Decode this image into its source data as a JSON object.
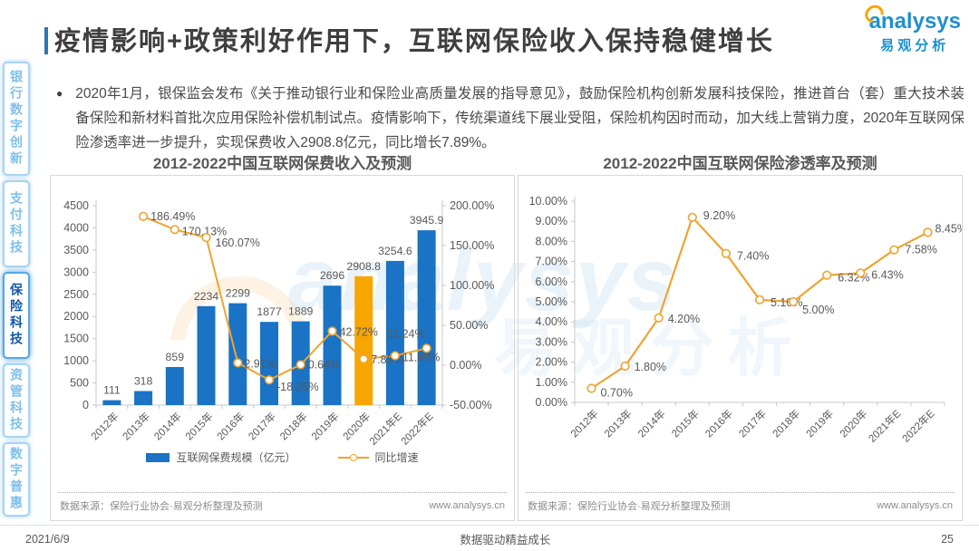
{
  "page": {
    "title": "疫情影响+政策利好作用下，互联网保险收入保持稳健增长",
    "logo": {
      "brand": "analysys",
      "brand_cn": "易观分析"
    },
    "bullet_text": "2020年1月，银保监会发布《关于推动银行业和保险业高质量发展的指导意见》，鼓励保险机构创新发展科技保险，推进首台（套）重大技术装备保险和新材料首批次应用保险补偿机制试点。疫情影响下，传统渠道线下展业受阻，保险机构因时而动，加大线上营销力度，2020年互联网保险渗透率进一步提升，实现保费收入2908.8亿元，同比增长7.89%。",
    "footer": {
      "date": "2021/6/9",
      "slogan": "数据驱动精益成长",
      "page_number": "25"
    }
  },
  "sidebar": {
    "items": [
      {
        "label": "银行数字创新",
        "active": false
      },
      {
        "label": "支付科技",
        "active": false
      },
      {
        "label": "保险科技",
        "active": true
      },
      {
        "label": "资管科技",
        "active": false
      },
      {
        "label": "数字普惠",
        "active": false
      }
    ]
  },
  "watermark": {
    "brand": "analysys",
    "brand_cn": "易观分析"
  },
  "colors": {
    "bar_blue": "#1a73c4",
    "bar_highlight_orange": "#f7a600",
    "line_orange": "#f0a330",
    "brand_blue": "#1f8fd0",
    "brand_orange": "#f7a600",
    "sidebar_active_blue": "#1258a8",
    "axis_gray": "#c9c9c9",
    "label_gray": "#595959"
  },
  "chart_data": [
    {
      "type": "bar",
      "title": "2012-2022中国互联网保费收入及预测",
      "categories": [
        "2012年",
        "2013年",
        "2014年",
        "2015年",
        "2016年",
        "2017年",
        "2018年",
        "2019年",
        "2020年",
        "2021年E",
        "2022年E"
      ],
      "series": [
        {
          "name": "互联网保费规模（亿元）",
          "type": "bar",
          "axis": "left",
          "color": "#1a73c4",
          "highlight_color": "#f7a600",
          "highlight_index": 8,
          "values": [
            111,
            318,
            859,
            2234,
            2299,
            1877,
            1889,
            2696,
            2908.8,
            3254.6,
            3945.9
          ],
          "labels": [
            "111",
            "318",
            "859",
            "2234",
            "2299",
            "1877",
            "1889",
            "2696",
            "2908.8",
            "3254.6",
            "3945.9"
          ]
        },
        {
          "name": "同比增速",
          "type": "line",
          "axis": "right",
          "color": "#f0a330",
          "values": [
            null,
            186.49,
            170.13,
            160.07,
            2.91,
            -18.36,
            0.64,
            42.72,
            7.89,
            11.89,
            21.24
          ],
          "labels": [
            "",
            "186.49%",
            "170.13%",
            "160.07%",
            "2.91%",
            "-18.36%",
            "0.64%",
            "42.72%",
            "7.89%",
            "11.89%",
            "21.24%"
          ]
        }
      ],
      "left_axis": {
        "min": 0,
        "max": 4500,
        "ticks": [
          "0",
          "500",
          "1000",
          "1500",
          "2000",
          "2500",
          "3000",
          "3500",
          "4000",
          "4500"
        ]
      },
      "right_axis": {
        "min": -50,
        "max": 200,
        "ticks": [
          "-50.00%",
          "0.00%",
          "50.00%",
          "100.00%",
          "150.00%",
          "200.00%"
        ]
      },
      "legend": [
        "互联网保费规模（亿元）",
        "同比增速"
      ],
      "legend_position": "bottom",
      "grid": false,
      "source": "数据来源：保险行业协会·易观分析整理及预测",
      "website": "www.analysys.cn"
    },
    {
      "type": "line",
      "title": "2012-2022中国互联网保险渗透率及预测",
      "categories": [
        "2012年",
        "2013年",
        "2014年",
        "2015年",
        "2016年",
        "2017年",
        "2018年",
        "2019年",
        "2020年",
        "2021年E",
        "2022年E"
      ],
      "series": [
        {
          "name": "互联网保险渗透率",
          "type": "line",
          "color": "#f0a330",
          "values": [
            0.7,
            1.8,
            4.2,
            9.2,
            7.4,
            5.1,
            5.0,
            6.32,
            6.43,
            7.58,
            8.45
          ],
          "labels": [
            "0.70%",
            "1.80%",
            "4.20%",
            "9.20%",
            "7.40%",
            "5.10%",
            "5.00%",
            "6.32%",
            "6.43%",
            "7.58%",
            "8.45%"
          ]
        }
      ],
      "y_axis": {
        "min": 0,
        "max": 10,
        "ticks": [
          "0.00%",
          "1.00%",
          "2.00%",
          "3.00%",
          "4.00%",
          "5.00%",
          "6.00%",
          "7.00%",
          "8.00%",
          "9.00%",
          "10.00%"
        ]
      },
      "grid": false,
      "source": "数据来源：保险行业协会·易观分析整理及预测",
      "website": "www.analysys.cn"
    }
  ]
}
